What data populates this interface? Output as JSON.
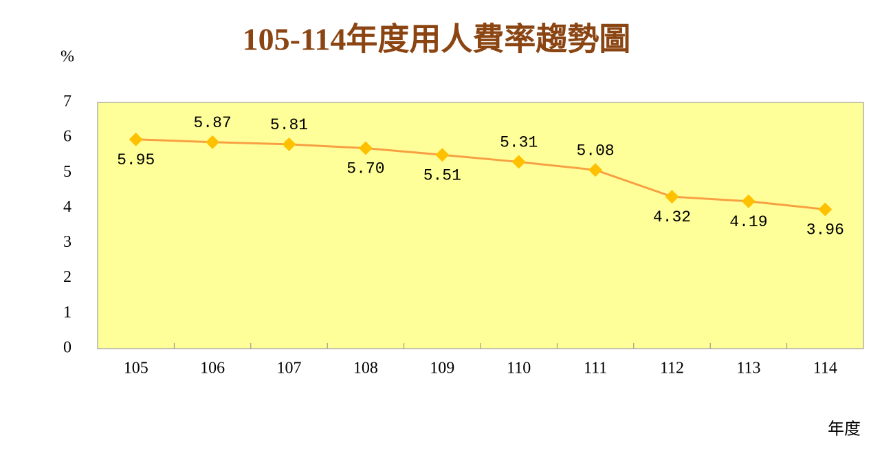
{
  "chart_data": {
    "type": "line",
    "title": "105-114年度用人費率趨勢圖",
    "y_label": "%",
    "x_label": "年度",
    "categories": [
      "105",
      "106",
      "107",
      "108",
      "109",
      "110",
      "111",
      "112",
      "113",
      "114"
    ],
    "series": [
      {
        "name": "用人費率",
        "color": "#f7a043",
        "marker_color": "#ffc000",
        "values": [
          5.95,
          5.87,
          5.81,
          5.7,
          5.51,
          5.31,
          5.08,
          4.32,
          4.19,
          3.96
        ],
        "value_labels": [
          "5.95",
          "5.87",
          "5.81",
          "5.70",
          "5.51",
          "5.31",
          "5.08",
          "4.32",
          "4.19",
          "3.96"
        ]
      }
    ],
    "ylim": [
      0,
      7
    ],
    "yticks": [
      0,
      1,
      2,
      3,
      4,
      5,
      6,
      7
    ],
    "background": "#ffff99"
  }
}
